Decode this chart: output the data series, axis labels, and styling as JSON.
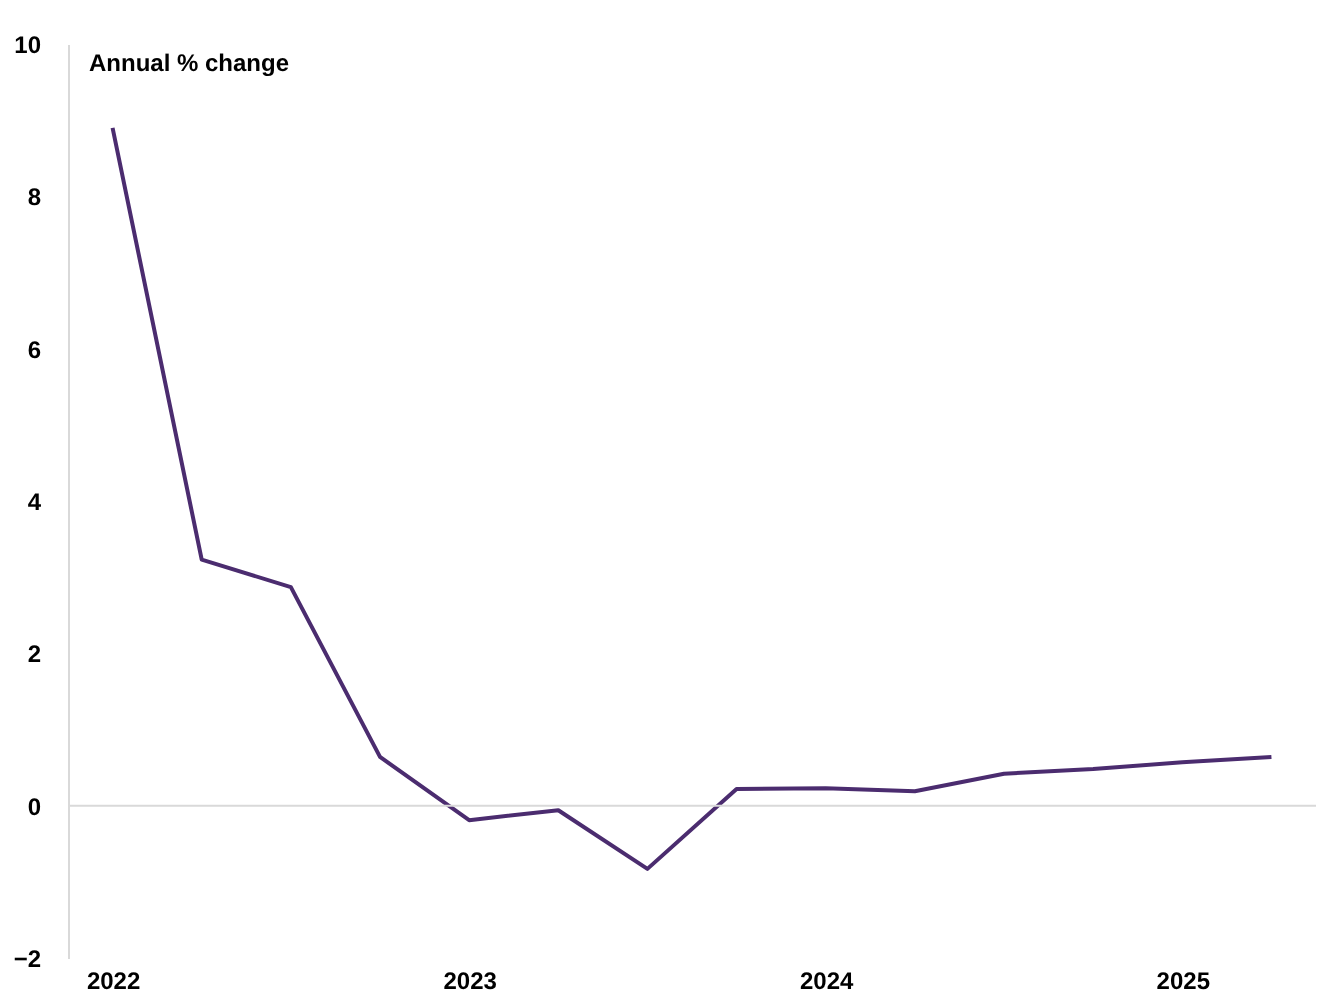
{
  "chart_data": {
    "type": "line",
    "ylabel": "Annual % change",
    "categories": [
      "2022",
      null,
      null,
      null,
      "2023",
      null,
      null,
      null,
      "2024",
      null,
      null,
      null,
      "2025",
      null
    ],
    "series": [
      {
        "color": "#4b2c6f",
        "values": [
          8.9,
          3.23,
          2.87,
          0.64,
          -0.19,
          -0.06,
          -0.83,
          0.22,
          0.23,
          0.19,
          0.42,
          0.48,
          0.57,
          0.64
        ]
      }
    ],
    "ylim": [
      -2,
      10
    ],
    "yticks": [
      -2,
      0,
      2,
      4,
      6,
      8,
      10
    ],
    "grid": false,
    "marker": "none",
    "line_style": "solid",
    "ref_lines": [
      {
        "axis": "y",
        "value": 0,
        "color": "#d9d9d9"
      }
    ]
  }
}
